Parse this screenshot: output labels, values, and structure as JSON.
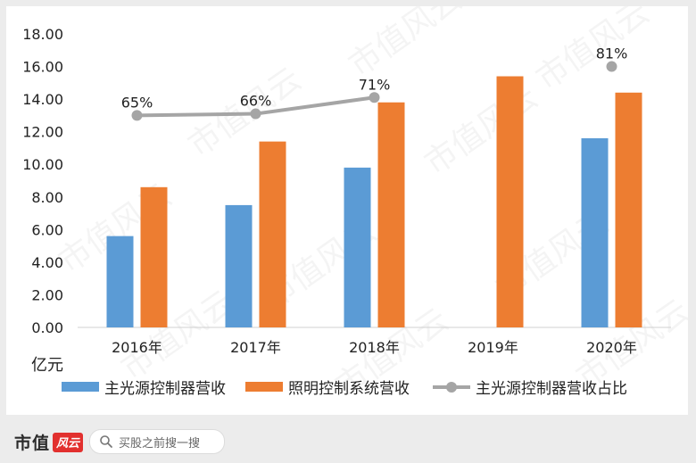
{
  "chart_data": {
    "type": "bar",
    "categories": [
      "2016年",
      "2017年",
      "2018年",
      "2019年",
      "2020年"
    ],
    "ylabel": "亿元",
    "ylim": [
      0,
      18
    ],
    "yticks": [
      "0.00",
      "2.00",
      "4.00",
      "6.00",
      "8.00",
      "10.00",
      "12.00",
      "14.00",
      "16.00",
      "18.00"
    ],
    "grid": false,
    "legend_position": "bottom",
    "series": [
      {
        "name": "主光源控制器营收",
        "type": "bar",
        "color": "#5b9bd5",
        "values": [
          5.6,
          7.5,
          9.8,
          null,
          11.6
        ]
      },
      {
        "name": "照明控制系统营收",
        "type": "bar",
        "color": "#ed7d31",
        "values": [
          8.6,
          11.4,
          13.8,
          15.4,
          14.4
        ]
      },
      {
        "name": "主光源控制器营收占比",
        "type": "line",
        "color": "#a5a5a5",
        "values": [
          13.0,
          13.1,
          14.1,
          null,
          16.0
        ],
        "labels": [
          "65%",
          "66%",
          "71%",
          "",
          "81%"
        ]
      }
    ]
  },
  "footer": {
    "logo_text": "市值",
    "logo_badge": "风云",
    "search_placeholder": "买股之前搜一搜"
  },
  "watermark": "市值风云"
}
